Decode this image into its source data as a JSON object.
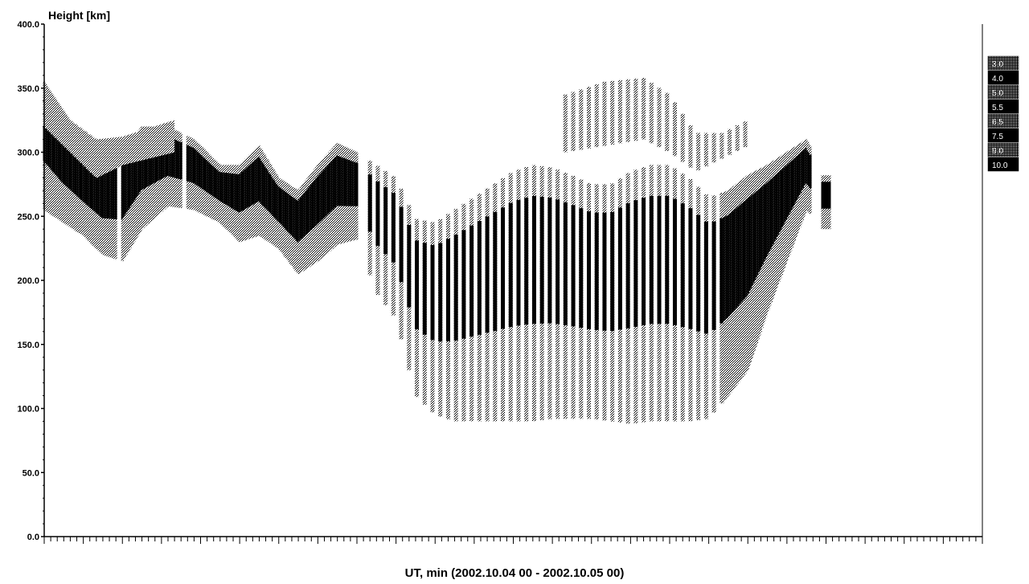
{
  "chart_data": {
    "type": "heatmap",
    "title": "Height [km]",
    "xlabel": "UT, min (2002.10.04 00 - 2002.10.05 00)",
    "ylabel": "Height [km]",
    "ylim": [
      0,
      400
    ],
    "xlim": [
      0,
      1440
    ],
    "y_ticks": [
      "0.0",
      "50.0",
      "100.0",
      "150.0",
      "200.0",
      "250.0",
      "300.0",
      "350.0",
      "400.0"
    ],
    "grid": false,
    "legend": {
      "placement": "right",
      "entries": [
        "3.0",
        "4.0",
        "5.0",
        "5.5",
        "6.5",
        "7.5",
        "9.0",
        "10.0"
      ]
    },
    "profiles": [
      {
        "x": 0,
        "y_bottom": 255,
        "y_top": 355
      },
      {
        "x": 30,
        "y_bottom": 245,
        "y_top": 325
      },
      {
        "x": 60,
        "y_bottom": 235,
        "y_top": 305
      },
      {
        "x": 90,
        "y_bottom": 220,
        "y_top": 295
      },
      {
        "x": 120,
        "y_bottom": 215,
        "y_top": 300
      },
      {
        "x": 150,
        "y_bottom": 240,
        "y_top": 320
      },
      {
        "x": 190,
        "y_bottom": 258,
        "y_top": 320
      },
      {
        "x": 230,
        "y_bottom": 255,
        "y_top": 310
      },
      {
        "x": 270,
        "y_bottom": 245,
        "y_top": 290
      },
      {
        "x": 300,
        "y_bottom": 230,
        "y_top": 290
      },
      {
        "x": 330,
        "y_bottom": 235,
        "y_top": 305
      },
      {
        "x": 360,
        "y_bottom": 225,
        "y_top": 280
      },
      {
        "x": 390,
        "y_bottom": 205,
        "y_top": 270
      },
      {
        "x": 420,
        "y_bottom": 215,
        "y_top": 290
      },
      {
        "x": 450,
        "y_bottom": 228,
        "y_top": 307
      },
      {
        "x": 480,
        "y_bottom": 232,
        "y_top": 300
      },
      {
        "x": 510,
        "y_bottom": 190,
        "y_top": 290
      },
      {
        "x": 540,
        "y_bottom": 170,
        "y_top": 280
      },
      {
        "x": 570,
        "y_bottom": 110,
        "y_top": 248
      },
      {
        "x": 600,
        "y_bottom": 95,
        "y_top": 245
      },
      {
        "x": 630,
        "y_bottom": 90,
        "y_top": 255
      },
      {
        "x": 660,
        "y_bottom": 90,
        "y_top": 265
      },
      {
        "x": 690,
        "y_bottom": 90,
        "y_top": 275
      },
      {
        "x": 720,
        "y_bottom": 90,
        "y_top": 285
      },
      {
        "x": 750,
        "y_bottom": 90,
        "y_top": 290
      },
      {
        "x": 780,
        "y_bottom": 92,
        "y_top": 288
      },
      {
        "x": 810,
        "y_bottom": 92,
        "y_top": 282
      },
      {
        "x": 840,
        "y_bottom": 92,
        "y_top": 275
      },
      {
        "x": 870,
        "y_bottom": 90,
        "y_top": 275
      },
      {
        "x": 900,
        "y_bottom": 88,
        "y_top": 285
      },
      {
        "x": 930,
        "y_bottom": 90,
        "y_top": 290
      },
      {
        "x": 960,
        "y_bottom": 90,
        "y_top": 290
      },
      {
        "x": 990,
        "y_bottom": 90,
        "y_top": 280
      },
      {
        "x": 1020,
        "y_bottom": 92,
        "y_top": 265
      },
      {
        "x": 1050,
        "y_bottom": 110,
        "y_top": 270
      },
      {
        "x": 1080,
        "y_bottom": 130,
        "y_top": 282
      },
      {
        "x": 1110,
        "y_bottom": 175,
        "y_top": 290
      },
      {
        "x": 1140,
        "y_bottom": 215,
        "y_top": 300
      },
      {
        "x": 1170,
        "y_bottom": 255,
        "y_top": 310
      },
      {
        "x": 1200,
        "y_bottom": 240,
        "y_top": 282
      }
    ],
    "upper_layer": [
      {
        "x": 0,
        "y_bottom": 320,
        "y_top": 355
      },
      {
        "x": 40,
        "y_bottom": 300,
        "y_top": 325
      },
      {
        "x": 80,
        "y_bottom": 280,
        "y_top": 310
      },
      {
        "x": 120,
        "y_bottom": 290,
        "y_top": 312
      },
      {
        "x": 200,
        "y_bottom": 300,
        "y_top": 325
      },
      {
        "x": 800,
        "y_bottom": 300,
        "y_top": 345
      },
      {
        "x": 860,
        "y_bottom": 305,
        "y_top": 355
      },
      {
        "x": 920,
        "y_bottom": 310,
        "y_top": 358
      },
      {
        "x": 960,
        "y_bottom": 300,
        "y_top": 345
      },
      {
        "x": 1000,
        "y_bottom": 285,
        "y_top": 315
      },
      {
        "x": 1040,
        "y_bottom": 295,
        "y_top": 315
      },
      {
        "x": 1080,
        "y_bottom": 305,
        "y_top": 325
      }
    ]
  },
  "colors": {
    "dark": "#000000",
    "dither": "#7a7a7a",
    "light": "#b8b8b8",
    "background": "#ffffff"
  }
}
